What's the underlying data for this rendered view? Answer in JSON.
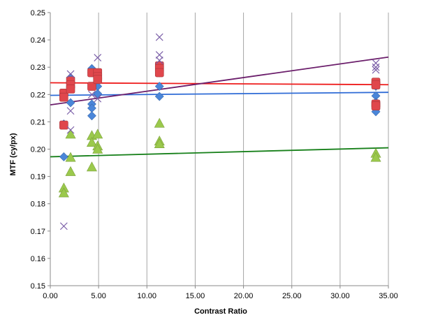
{
  "chart_data": {
    "type": "scatter",
    "title": "",
    "xlabel": "Contrast Ratio",
    "ylabel": "MTF (cy/px)",
    "xlim": [
      0,
      35
    ],
    "ylim": [
      0.15,
      0.25
    ],
    "x_ticks": [
      "0.00",
      "5.00",
      "10.00",
      "15.00",
      "20.00",
      "25.00",
      "30.00",
      "35.00"
    ],
    "y_ticks": [
      "0.15",
      "0.16",
      "0.17",
      "0.18",
      "0.19",
      "0.20",
      "0.21",
      "0.22",
      "0.23",
      "0.24",
      "0.25"
    ],
    "grid": "vertical",
    "legend": "none",
    "series": [
      {
        "marker": "diamond",
        "color": "#4A86D9",
        "points": [
          [
            1.4,
            0.2198
          ],
          [
            1.4,
            0.2092
          ],
          [
            1.4,
            0.1972
          ],
          [
            2.1,
            0.2262
          ],
          [
            2.1,
            0.2245
          ],
          [
            2.1,
            0.2225
          ],
          [
            2.1,
            0.217
          ],
          [
            4.3,
            0.2295
          ],
          [
            4.3,
            0.228
          ],
          [
            4.3,
            0.2165
          ],
          [
            4.3,
            0.215
          ],
          [
            4.3,
            0.2122
          ],
          [
            4.9,
            0.2258
          ],
          [
            4.9,
            0.223
          ],
          [
            4.9,
            0.2203
          ],
          [
            11.3,
            0.231
          ],
          [
            11.3,
            0.228
          ],
          [
            11.3,
            0.223
          ],
          [
            11.3,
            0.2193
          ],
          [
            33.7,
            0.223
          ],
          [
            33.7,
            0.2195
          ],
          [
            33.7,
            0.2172
          ],
          [
            33.7,
            0.216
          ],
          [
            33.7,
            0.2137
          ]
        ]
      },
      {
        "marker": "square",
        "color": "#E0474C",
        "points": [
          [
            1.4,
            0.2205
          ],
          [
            1.4,
            0.219
          ],
          [
            1.4,
            0.2088
          ],
          [
            2.1,
            0.225
          ],
          [
            2.1,
            0.2235
          ],
          [
            2.1,
            0.222
          ],
          [
            4.3,
            0.228
          ],
          [
            4.3,
            0.223
          ],
          [
            4.9,
            0.228
          ],
          [
            4.9,
            0.2265
          ],
          [
            4.9,
            0.2255
          ],
          [
            11.3,
            0.2305
          ],
          [
            11.3,
            0.2295
          ],
          [
            11.3,
            0.228
          ],
          [
            33.7,
            0.2245
          ],
          [
            33.7,
            0.2235
          ],
          [
            33.7,
            0.2165
          ],
          [
            33.7,
            0.2158
          ]
        ]
      },
      {
        "marker": "triangle",
        "color": "#9BC94C",
        "points": [
          [
            1.4,
            0.1858
          ],
          [
            1.4,
            0.184
          ],
          [
            2.1,
            0.2055
          ],
          [
            2.1,
            0.197
          ],
          [
            2.1,
            0.1918
          ],
          [
            4.3,
            0.205
          ],
          [
            4.3,
            0.2025
          ],
          [
            4.3,
            0.1935
          ],
          [
            4.9,
            0.2055
          ],
          [
            4.9,
            0.2012
          ],
          [
            4.9,
            0.2
          ],
          [
            11.3,
            0.2095
          ],
          [
            11.3,
            0.203
          ],
          [
            11.3,
            0.202
          ],
          [
            33.7,
            0.1985
          ],
          [
            33.7,
            0.197
          ]
        ]
      },
      {
        "marker": "cross",
        "color": "#7B5FA8",
        "points": [
          [
            1.4,
            0.1718
          ],
          [
            2.1,
            0.2275
          ],
          [
            2.1,
            0.214
          ],
          [
            2.1,
            0.207
          ],
          [
            4.3,
            0.22
          ],
          [
            4.9,
            0.2335
          ],
          [
            4.9,
            0.2185
          ],
          [
            11.3,
            0.241
          ],
          [
            11.3,
            0.2345
          ],
          [
            11.3,
            0.2325
          ],
          [
            33.7,
            0.2315
          ],
          [
            33.7,
            0.23
          ],
          [
            33.7,
            0.229
          ]
        ]
      }
    ],
    "trendlines": [
      {
        "color": "#EE1C1C",
        "x": [
          0,
          35
        ],
        "y": [
          0.2243,
          0.2236
        ]
      },
      {
        "color": "#2E6BD6",
        "x": [
          0,
          35
        ],
        "y": [
          0.2197,
          0.2208
        ]
      },
      {
        "color": "#6B1E6B",
        "x": [
          0,
          35
        ],
        "y": [
          0.2162,
          0.2337
        ]
      },
      {
        "color": "#17801A",
        "x": [
          0,
          35
        ],
        "y": [
          0.1972,
          0.2005
        ]
      }
    ]
  }
}
